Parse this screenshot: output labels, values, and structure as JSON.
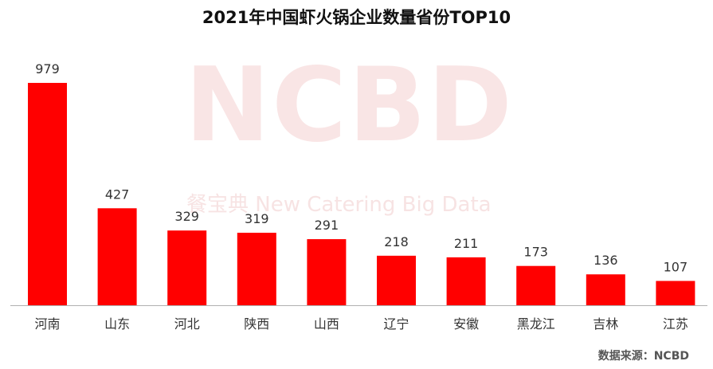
{
  "title": "2021年中国虾火锅企业数量省份TOP10",
  "watermark": {
    "big": "NCBD",
    "small": "餐宝典  New Catering Big Data"
  },
  "source": "数据来源：NCBD",
  "colors": {
    "bar": "#ff0000",
    "axis": "#b0b0b0",
    "label": "#333333"
  },
  "chart_data": {
    "type": "bar",
    "title": "2021年中国虾火锅企业数量省份TOP10",
    "categories": [
      "河南",
      "山东",
      "河北",
      "陕西",
      "山西",
      "辽宁",
      "安徽",
      "黑龙江",
      "吉林",
      "江苏"
    ],
    "values": [
      979,
      427,
      329,
      319,
      291,
      218,
      211,
      173,
      136,
      107
    ],
    "xlabel": "",
    "ylabel": "",
    "ylim": [
      0,
      979
    ],
    "grid": false,
    "data_labels": true
  }
}
